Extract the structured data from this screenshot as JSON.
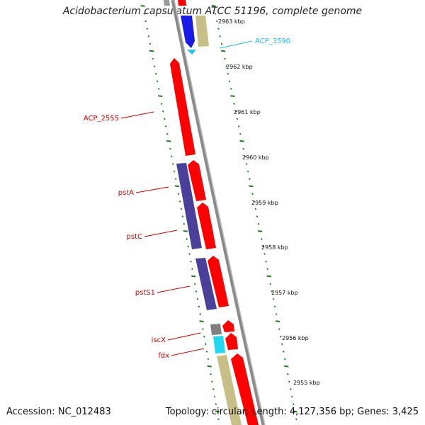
{
  "title": "Acidobacterium capsulatum ATCC 51196, complete genome",
  "footer": {
    "accession": "Accession: NC_012483",
    "summary": "Topology: circular; Length: 4,127,356 bp; Genes: 3,425"
  },
  "colors": {
    "backbone": "#8a8a8a",
    "red_gene": "#ff0000",
    "blue_gene": "#1a1ae6",
    "purple_gene": "#4a3f99",
    "khaki_gene": "#c8be88",
    "cyan_gene": "#22d7f0",
    "gray_gene": "#808080",
    "tick_green": "#1f7a1f",
    "label_red": "#cc0000",
    "label_cyan": "#22b5e6"
  },
  "scale": {
    "ticks": [
      {
        "label": "2963 kbp",
        "kbp": 2963
      },
      {
        "label": "2962 kbp",
        "kbp": 2962
      },
      {
        "label": "2961 kbp",
        "kbp": 2961
      },
      {
        "label": "2960 kbp",
        "kbp": 2960
      },
      {
        "label": "2959 kbp",
        "kbp": 2959
      },
      {
        "label": "2958 kbp",
        "kbp": 2958
      },
      {
        "label": "2957 kbp",
        "kbp": 2957
      },
      {
        "label": "2956 kbp",
        "kbp": 2956
      },
      {
        "label": "2955 kbp",
        "kbp": 2955
      }
    ]
  },
  "gene_labels": [
    {
      "name": "ACP_3590",
      "color_key": "label_cyan"
    },
    {
      "name": "ACP_2555",
      "color_key": "label_red"
    },
    {
      "name": "pstA",
      "color_key": "label_red"
    },
    {
      "name": "pstC",
      "color_key": "label_red"
    },
    {
      "name": "pstS1",
      "color_key": "label_red"
    },
    {
      "name": "iscX",
      "color_key": "label_red"
    },
    {
      "name": "fdx",
      "color_key": "label_red"
    }
  ]
}
